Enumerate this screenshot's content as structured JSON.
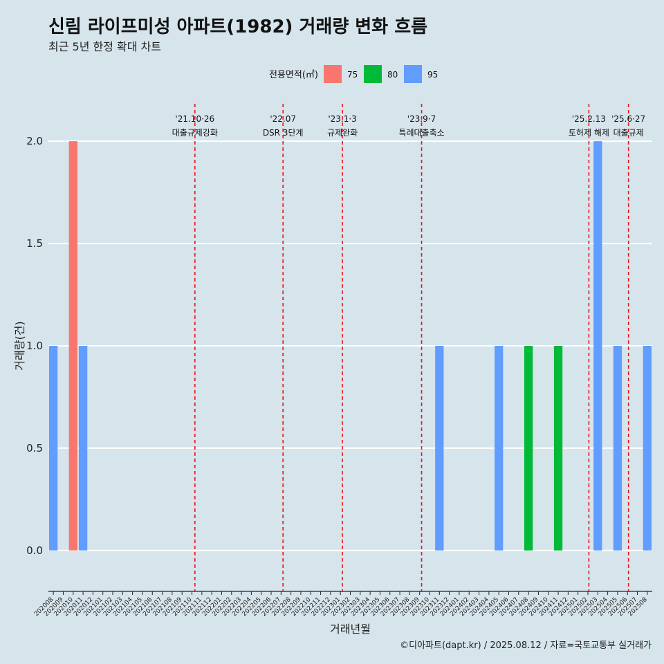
{
  "title": "신림 라이프미성 아파트(1982) 거래량 변화 흐름",
  "subtitle": "최근 5년 한정 확대 차트",
  "caption": "©디아파트(dapt.kr) / 2025.08.12 / 자료=국토교통부 실거래가",
  "colors": {
    "75": "#f8766d",
    "80": "#00ba38",
    "95": "#619cff",
    "event_line": "#e8141c",
    "grid": "#ffffff"
  },
  "chart_data": {
    "type": "bar",
    "xlabel": "거래년월",
    "ylabel": "거래량(건)",
    "ylim": [
      -0.2,
      2.2
    ],
    "yticks": [
      0.0,
      0.5,
      1.0,
      1.5,
      2.0
    ],
    "ytick_labels": [
      "0.0",
      "0.5",
      "1.0",
      "1.5",
      "2.0"
    ],
    "legend": {
      "title": "전용면적(㎡)",
      "position": "top",
      "entries": [
        {
          "key": "75",
          "label": "75"
        },
        {
          "key": "80",
          "label": "80"
        },
        {
          "key": "95",
          "label": "95"
        }
      ]
    },
    "categories": [
      "202008",
      "202009",
      "202010",
      "202011",
      "202012",
      "202101",
      "202102",
      "202103",
      "202104",
      "202105",
      "202106",
      "202107",
      "202108",
      "202109",
      "202110",
      "202111",
      "202112",
      "202201",
      "202202",
      "202203",
      "202204",
      "202205",
      "202206",
      "202207",
      "202208",
      "202209",
      "202210",
      "202211",
      "202212",
      "202301",
      "202302",
      "202303",
      "202304",
      "202305",
      "202306",
      "202307",
      "202308",
      "202309",
      "202310",
      "202311",
      "202312",
      "202401",
      "202402",
      "202403",
      "202404",
      "202405",
      "202406",
      "202407",
      "202408",
      "202409",
      "202410",
      "202411",
      "202412",
      "202501",
      "202502",
      "202503",
      "202504",
      "202505",
      "202506",
      "202507",
      "202508"
    ],
    "bars": [
      {
        "month": "202008",
        "area": "95",
        "value": 1
      },
      {
        "month": "202010",
        "area": "75",
        "value": 2
      },
      {
        "month": "202011",
        "area": "95",
        "value": 1
      },
      {
        "month": "202311",
        "area": "95",
        "value": 1
      },
      {
        "month": "202405",
        "area": "95",
        "value": 1
      },
      {
        "month": "202408",
        "area": "80",
        "value": 1
      },
      {
        "month": "202411",
        "area": "80",
        "value": 1
      },
      {
        "month": "202503",
        "area": "95",
        "value": 2
      },
      {
        "month": "202505",
        "area": "95",
        "value": 1
      },
      {
        "month": "202508",
        "area": "95",
        "value": 1
      }
    ],
    "events": [
      {
        "position": 14.3,
        "line1": "'21.10·26",
        "line2": "대출규제강화"
      },
      {
        "position": 23.2,
        "line1": "'22.07",
        "line2": "DSR 3단계"
      },
      {
        "position": 29.2,
        "line1": "'23.1·3",
        "line2": "규제완화"
      },
      {
        "position": 37.2,
        "line1": "'23.9·7",
        "line2": "특례대출축소"
      },
      {
        "position": 54.1,
        "line1": "'25.2.13",
        "line2": "토허제 해제"
      },
      {
        "position": 58.1,
        "line1": "'25.6·27",
        "line2": "대출규제"
      }
    ]
  }
}
